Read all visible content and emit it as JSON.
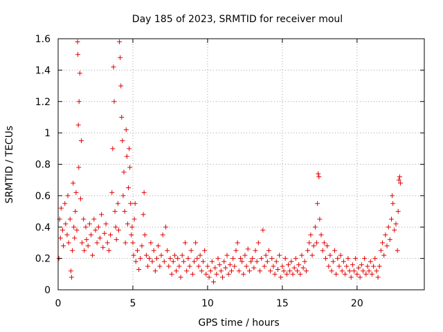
{
  "chart_data": {
    "type": "scatter",
    "title": "Day 185 of 2023, SRMTID for receiver moul",
    "xlabel": "GPS time / hours",
    "ylabel": "SRMTID / TECUs",
    "xlim": [
      0,
      24.5
    ],
    "ylim": [
      0,
      1.6
    ],
    "x_ticks": [
      0,
      5,
      10,
      15,
      20
    ],
    "x_tick_labels": [
      "0",
      "5",
      "10",
      "15",
      "20"
    ],
    "y_ticks": [
      0,
      0.2,
      0.4,
      0.6,
      0.8,
      1.0,
      1.2,
      1.4,
      1.6
    ],
    "y_tick_labels": [
      "0",
      "0.2",
      "0.4",
      "0.6",
      "0.8",
      "1",
      "1.2",
      "1.4",
      "1.6"
    ],
    "grid": true,
    "marker": "+",
    "colors": {
      "series": "#e00000",
      "grid": "#a0a0a0",
      "axes": "#000000"
    },
    "series": [
      {
        "name": "SRMTID",
        "points": [
          [
            0.05,
            0.2
          ],
          [
            0.1,
            0.45
          ],
          [
            0.15,
            0.33
          ],
          [
            0.2,
            0.52
          ],
          [
            0.3,
            0.38
          ],
          [
            0.35,
            0.28
          ],
          [
            0.45,
            0.55
          ],
          [
            0.5,
            0.42
          ],
          [
            0.6,
            0.35
          ],
          [
            0.65,
            0.6
          ],
          [
            0.7,
            0.3
          ],
          [
            0.8,
            0.45
          ],
          [
            0.85,
            0.12
          ],
          [
            0.9,
            0.08
          ],
          [
            0.95,
            0.25
          ],
          [
            1.0,
            0.68
          ],
          [
            1.05,
            0.4
          ],
          [
            1.1,
            0.33
          ],
          [
            1.15,
            0.5
          ],
          [
            1.2,
            0.62
          ],
          [
            1.25,
            0.38
          ],
          [
            1.3,
            1.58
          ],
          [
            1.32,
            1.5
          ],
          [
            1.35,
            1.05
          ],
          [
            1.38,
            0.78
          ],
          [
            1.4,
            1.2
          ],
          [
            1.45,
            1.38
          ],
          [
            1.5,
            0.58
          ],
          [
            1.55,
            0.95
          ],
          [
            1.6,
            0.3
          ],
          [
            1.7,
            0.45
          ],
          [
            1.75,
            0.25
          ],
          [
            1.85,
            0.4
          ],
          [
            1.9,
            0.32
          ],
          [
            2.0,
            0.28
          ],
          [
            2.1,
            0.42
          ],
          [
            2.2,
            0.35
          ],
          [
            2.3,
            0.22
          ],
          [
            2.4,
            0.45
          ],
          [
            2.5,
            0.38
          ],
          [
            2.6,
            0.3
          ],
          [
            2.7,
            0.4
          ],
          [
            2.8,
            0.33
          ],
          [
            2.9,
            0.48
          ],
          [
            3.0,
            0.27
          ],
          [
            3.1,
            0.36
          ],
          [
            3.2,
            0.42
          ],
          [
            3.3,
            0.3
          ],
          [
            3.4,
            0.25
          ],
          [
            3.5,
            0.35
          ],
          [
            3.6,
            0.62
          ],
          [
            3.65,
            0.9
          ],
          [
            3.7,
            1.42
          ],
          [
            3.75,
            1.2
          ],
          [
            3.8,
            0.5
          ],
          [
            3.85,
            0.4
          ],
          [
            3.9,
            0.32
          ],
          [
            4.0,
            0.55
          ],
          [
            4.05,
            0.38
          ],
          [
            4.1,
            1.58
          ],
          [
            4.15,
            1.48
          ],
          [
            4.2,
            1.3
          ],
          [
            4.25,
            1.1
          ],
          [
            4.3,
            0.95
          ],
          [
            4.35,
            0.6
          ],
          [
            4.4,
            0.75
          ],
          [
            4.45,
            0.5
          ],
          [
            4.5,
            0.3
          ],
          [
            4.55,
            1.02
          ],
          [
            4.6,
            0.85
          ],
          [
            4.65,
            0.42
          ],
          [
            4.7,
            0.65
          ],
          [
            4.75,
            0.9
          ],
          [
            4.8,
            0.78
          ],
          [
            4.85,
            0.55
          ],
          [
            4.9,
            0.35
          ],
          [
            4.95,
            0.4
          ],
          [
            5.0,
            0.3
          ],
          [
            5.05,
            0.22
          ],
          [
            5.1,
            0.45
          ],
          [
            5.15,
            0.55
          ],
          [
            5.2,
            0.18
          ],
          [
            5.3,
            0.25
          ],
          [
            5.4,
            0.13
          ],
          [
            5.5,
            0.2
          ],
          [
            5.6,
            0.28
          ],
          [
            5.7,
            0.48
          ],
          [
            5.75,
            0.62
          ],
          [
            5.8,
            0.35
          ],
          [
            5.9,
            0.22
          ],
          [
            6.0,
            0.15
          ],
          [
            6.1,
            0.2
          ],
          [
            6.2,
            0.3
          ],
          [
            6.3,
            0.18
          ],
          [
            6.4,
            0.25
          ],
          [
            6.5,
            0.12
          ],
          [
            6.6,
            0.2
          ],
          [
            6.7,
            0.28
          ],
          [
            6.8,
            0.15
          ],
          [
            6.9,
            0.22
          ],
          [
            7.0,
            0.35
          ],
          [
            7.1,
            0.18
          ],
          [
            7.2,
            0.4
          ],
          [
            7.3,
            0.25
          ],
          [
            7.4,
            0.15
          ],
          [
            7.5,
            0.2
          ],
          [
            7.6,
            0.1
          ],
          [
            7.7,
            0.18
          ],
          [
            7.8,
            0.22
          ],
          [
            7.9,
            0.12
          ],
          [
            8.0,
            0.2
          ],
          [
            8.1,
            0.15
          ],
          [
            8.2,
            0.08
          ],
          [
            8.3,
            0.22
          ],
          [
            8.4,
            0.18
          ],
          [
            8.5,
            0.3
          ],
          [
            8.6,
            0.12
          ],
          [
            8.7,
            0.2
          ],
          [
            8.8,
            0.15
          ],
          [
            8.9,
            0.25
          ],
          [
            9.0,
            0.1
          ],
          [
            9.1,
            0.18
          ],
          [
            9.2,
            0.3
          ],
          [
            9.3,
            0.2
          ],
          [
            9.4,
            0.15
          ],
          [
            9.5,
            0.22
          ],
          [
            9.6,
            0.12
          ],
          [
            9.7,
            0.18
          ],
          [
            9.8,
            0.25
          ],
          [
            9.9,
            0.1
          ],
          [
            10.0,
            0.15
          ],
          [
            10.1,
            0.08
          ],
          [
            10.2,
            0.12
          ],
          [
            10.3,
            0.18
          ],
          [
            10.4,
            0.05
          ],
          [
            10.5,
            0.14
          ],
          [
            10.6,
            0.1
          ],
          [
            10.7,
            0.2
          ],
          [
            10.8,
            0.16
          ],
          [
            10.9,
            0.12
          ],
          [
            11.0,
            0.08
          ],
          [
            11.1,
            0.18
          ],
          [
            11.2,
            0.14
          ],
          [
            11.3,
            0.22
          ],
          [
            11.4,
            0.1
          ],
          [
            11.5,
            0.16
          ],
          [
            11.6,
            0.12
          ],
          [
            11.7,
            0.2
          ],
          [
            11.8,
            0.15
          ],
          [
            11.9,
            0.25
          ],
          [
            12.0,
            0.3
          ],
          [
            12.1,
            0.12
          ],
          [
            12.2,
            0.2
          ],
          [
            12.3,
            0.18
          ],
          [
            12.4,
            0.1
          ],
          [
            12.5,
            0.22
          ],
          [
            12.6,
            0.15
          ],
          [
            12.7,
            0.26
          ],
          [
            12.8,
            0.12
          ],
          [
            12.9,
            0.18
          ],
          [
            13.0,
            0.2
          ],
          [
            13.1,
            0.14
          ],
          [
            13.2,
            0.25
          ],
          [
            13.3,
            0.18
          ],
          [
            13.4,
            0.3
          ],
          [
            13.5,
            0.12
          ],
          [
            13.6,
            0.2
          ],
          [
            13.7,
            0.38
          ],
          [
            13.8,
            0.15
          ],
          [
            13.9,
            0.22
          ],
          [
            14.0,
            0.18
          ],
          [
            14.1,
            0.25
          ],
          [
            14.2,
            0.12
          ],
          [
            14.3,
            0.2
          ],
          [
            14.4,
            0.15
          ],
          [
            14.5,
            0.1
          ],
          [
            14.6,
            0.18
          ],
          [
            14.7,
            0.13
          ],
          [
            14.8,
            0.22
          ],
          [
            14.9,
            0.08
          ],
          [
            15.0,
            0.15
          ],
          [
            15.1,
            0.12
          ],
          [
            15.2,
            0.2
          ],
          [
            15.3,
            0.1
          ],
          [
            15.4,
            0.16
          ],
          [
            15.5,
            0.12
          ],
          [
            15.6,
            0.18
          ],
          [
            15.7,
            0.1
          ],
          [
            15.8,
            0.14
          ],
          [
            15.9,
            0.2
          ],
          [
            16.0,
            0.12
          ],
          [
            16.1,
            0.16
          ],
          [
            16.2,
            0.1
          ],
          [
            16.3,
            0.22
          ],
          [
            16.4,
            0.14
          ],
          [
            16.5,
            0.18
          ],
          [
            16.6,
            0.12
          ],
          [
            16.7,
            0.25
          ],
          [
            16.8,
            0.3
          ],
          [
            16.9,
            0.35
          ],
          [
            17.0,
            0.22
          ],
          [
            17.1,
            0.28
          ],
          [
            17.2,
            0.4
          ],
          [
            17.3,
            0.3
          ],
          [
            17.35,
            0.55
          ],
          [
            17.4,
            0.74
          ],
          [
            17.45,
            0.72
          ],
          [
            17.5,
            0.45
          ],
          [
            17.6,
            0.35
          ],
          [
            17.7,
            0.25
          ],
          [
            17.8,
            0.3
          ],
          [
            17.9,
            0.2
          ],
          [
            18.0,
            0.28
          ],
          [
            18.1,
            0.15
          ],
          [
            18.2,
            0.22
          ],
          [
            18.3,
            0.12
          ],
          [
            18.4,
            0.18
          ],
          [
            18.5,
            0.25
          ],
          [
            18.6,
            0.1
          ],
          [
            18.7,
            0.2
          ],
          [
            18.8,
            0.15
          ],
          [
            18.9,
            0.22
          ],
          [
            19.0,
            0.12
          ],
          [
            19.1,
            0.18
          ],
          [
            19.2,
            0.1
          ],
          [
            19.3,
            0.15
          ],
          [
            19.4,
            0.2
          ],
          [
            19.5,
            0.12
          ],
          [
            19.6,
            0.08
          ],
          [
            19.7,
            0.16
          ],
          [
            19.8,
            0.12
          ],
          [
            19.9,
            0.2
          ],
          [
            20.0,
            0.1
          ],
          [
            20.1,
            0.14
          ],
          [
            20.2,
            0.08
          ],
          [
            20.3,
            0.16
          ],
          [
            20.4,
            0.12
          ],
          [
            20.5,
            0.2
          ],
          [
            20.6,
            0.1
          ],
          [
            20.7,
            0.15
          ],
          [
            20.8,
            0.12
          ],
          [
            20.9,
            0.18
          ],
          [
            21.0,
            0.1
          ],
          [
            21.1,
            0.15
          ],
          [
            21.2,
            0.2
          ],
          [
            21.3,
            0.12
          ],
          [
            21.4,
            0.08
          ],
          [
            21.5,
            0.15
          ],
          [
            21.6,
            0.25
          ],
          [
            21.7,
            0.3
          ],
          [
            21.8,
            0.22
          ],
          [
            21.9,
            0.35
          ],
          [
            22.0,
            0.28
          ],
          [
            22.1,
            0.4
          ],
          [
            22.2,
            0.32
          ],
          [
            22.3,
            0.45
          ],
          [
            22.35,
            0.6
          ],
          [
            22.4,
            0.55
          ],
          [
            22.5,
            0.38
          ],
          [
            22.6,
            0.42
          ],
          [
            22.7,
            0.25
          ],
          [
            22.75,
            0.5
          ],
          [
            22.8,
            0.7
          ],
          [
            22.85,
            0.72
          ],
          [
            22.9,
            0.68
          ]
        ]
      }
    ]
  }
}
